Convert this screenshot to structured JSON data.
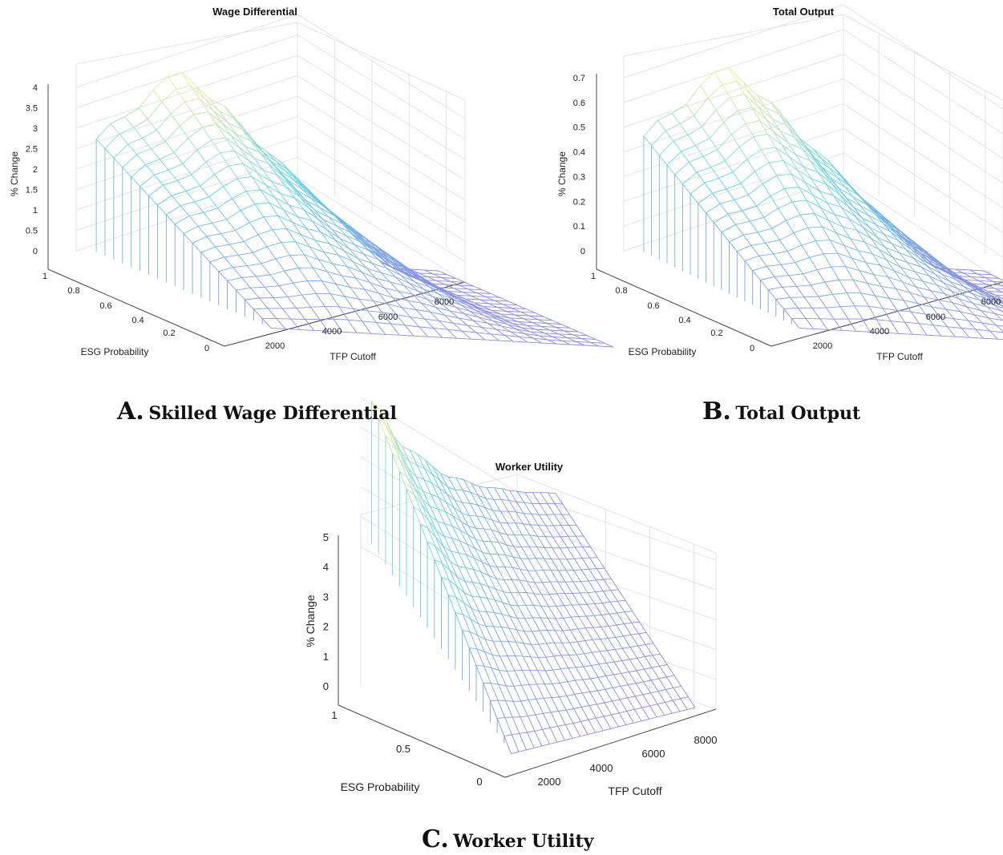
{
  "panels": [
    {
      "letter": "A.",
      "caption": "Skilled Wage Differential"
    },
    {
      "letter": "B.",
      "caption": "Total Output"
    },
    {
      "letter": "C.",
      "caption": "Worker Utility"
    }
  ],
  "chart_data": [
    {
      "type": "surface",
      "title": "Wage Differential",
      "xlabel": "TFP Cutoff",
      "ylabel": "ESG Probability",
      "zlabel": "% Change",
      "xlim": [
        0,
        9000
      ],
      "ylim": [
        0,
        1
      ],
      "zlim": [
        0,
        4
      ],
      "xticks": [
        2000,
        4000,
        6000,
        8000
      ],
      "yticks": [
        0,
        0.2,
        0.4,
        0.6,
        0.8,
        1
      ],
      "zticks": [
        0,
        0.5,
        1,
        1.5,
        2,
        2.5,
        3,
        3.5,
        4
      ],
      "grid": true,
      "x_range": [
        500,
        9000
      ],
      "y_range": [
        0,
        1
      ],
      "shape": "rises linearly with ESG Probability; peaks at low TFP Cutoff and falls to 0 near TFP Cutoff 8000",
      "peak_value": 4.6
    },
    {
      "type": "surface",
      "title": "Total Output",
      "xlabel": "TFP Cutoff",
      "ylabel": "ESG Probability",
      "zlabel": "% Change",
      "xlim": [
        0,
        9000
      ],
      "ylim": [
        0,
        1
      ],
      "zlim": [
        0,
        0.7
      ],
      "xticks": [
        2000,
        4000,
        6000,
        8000
      ],
      "yticks": [
        0,
        0.2,
        0.4,
        0.6,
        0.8,
        1
      ],
      "zticks": [
        0,
        0.1,
        0.2,
        0.3,
        0.4,
        0.5,
        0.6,
        0.7
      ],
      "grid": true,
      "x_range": [
        500,
        9000
      ],
      "y_range": [
        0,
        1
      ],
      "shape": "rises linearly with ESG Probability; peaks at low TFP Cutoff and falls to 0 near TFP Cutoff 8000",
      "peak_value": 0.78
    },
    {
      "type": "surface",
      "title": "Worker Utility",
      "xlabel": "TFP Cutoff",
      "ylabel": "ESG Probability",
      "zlabel": "% Change",
      "xlim": [
        0,
        9000
      ],
      "ylim": [
        0,
        1
      ],
      "zlim": [
        0,
        5
      ],
      "xticks": [
        2000,
        4000,
        6000,
        8000
      ],
      "yticks": [
        0,
        0.5,
        1
      ],
      "zticks": [
        0,
        1,
        2,
        3,
        4,
        5
      ],
      "grid": true,
      "x_range": [
        500,
        9000
      ],
      "y_range": [
        0,
        1
      ],
      "shape": "highest at ESG Probability 1 and low TFP Cutoff; declines toward 0 with TFP Cutoff and lower ESG Probability",
      "peak_value": 4.8
    }
  ],
  "colors": {
    "surface_low": "#8c8ce6",
    "surface_mid": "#5fd6e6",
    "surface_high": "#ffef8a"
  }
}
